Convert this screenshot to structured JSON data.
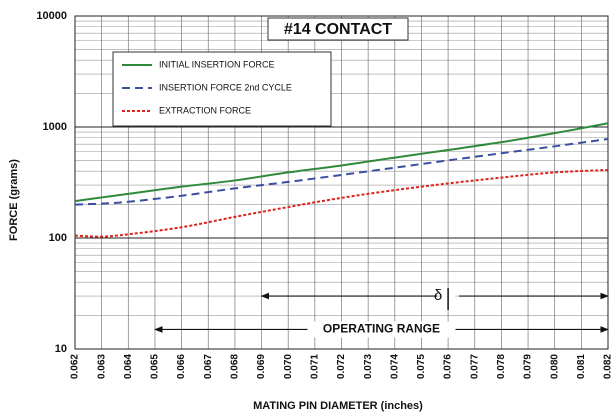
{
  "chart_data": {
    "type": "line",
    "title": "#14 CONTACT",
    "x_label": "MATING PIN DIAMETER (inches)",
    "y_label": "FORCE (grams)",
    "log_y": true,
    "grid": true,
    "legend": "upper left",
    "x": [
      0.062,
      0.063,
      0.064,
      0.066,
      0.068,
      0.07,
      0.072,
      0.074,
      0.076,
      0.078,
      0.08,
      0.082
    ],
    "series": [
      {
        "name": "INITIAL INSERTION FORCE",
        "color": "#2e8b3a",
        "dash": "solid",
        "values": [
          215,
          232,
          250,
          290,
          330,
          390,
          450,
          530,
          620,
          730,
          880,
          1080
        ]
      },
      {
        "name": "INSERTION FORCE 2nd CYCLE",
        "color": "#3b4fa0",
        "dash": "dashed",
        "values": [
          200,
          204,
          212,
          240,
          280,
          320,
          370,
          430,
          500,
          580,
          670,
          780
        ]
      },
      {
        "name": "EXTRACTION FORCE",
        "color": "#e0201b",
        "dash": "dotted",
        "values": [
          105,
          103,
          108,
          125,
          155,
          190,
          230,
          270,
          310,
          350,
          390,
          410
        ]
      }
    ],
    "xlim": [
      0.062,
      0.082
    ],
    "xticks": [
      0.062,
      0.063,
      0.064,
      0.065,
      0.066,
      0.067,
      0.068,
      0.069,
      {
        "value": 0.07,
        "label": "0.070"
      },
      0.071,
      0.072,
      0.073,
      0.074,
      0.075,
      0.076,
      0.077,
      0.078,
      0.079,
      {
        "value": 0.08,
        "label": "0.080"
      },
      0.081,
      0.082
    ],
    "ylim": [
      10,
      10000
    ],
    "yticks": [
      10,
      100,
      1000,
      10000
    ],
    "yticks_minor": [
      20,
      30,
      40,
      50,
      60,
      70,
      80,
      90,
      200,
      300,
      400,
      500,
      600,
      700,
      800,
      900,
      2000,
      3000,
      4000,
      5000,
      6000,
      7000,
      8000,
      9000
    ],
    "annotations": [
      {
        "text": "δ",
        "x": [
          0.069,
          0.082
        ],
        "mark": 0.076,
        "y": 30
      },
      {
        "text": "OPERATING RANGE",
        "x": [
          0.065,
          0.082
        ],
        "y": 15
      }
    ]
  }
}
